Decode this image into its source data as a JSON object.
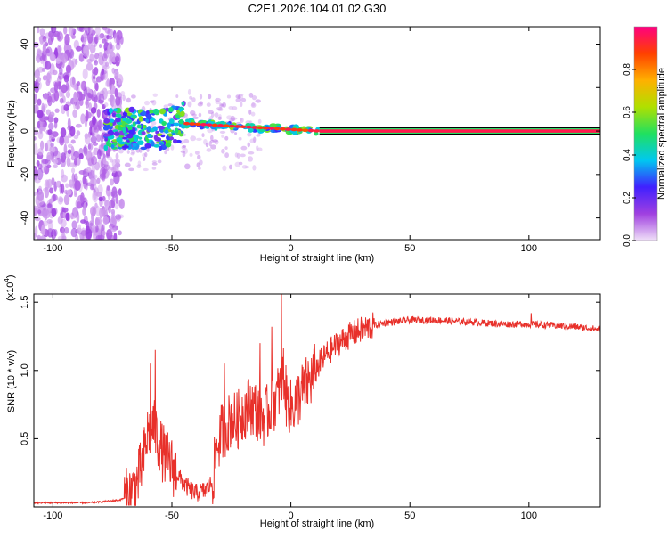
{
  "title": "C2E1.2026.104.01.02.G30",
  "chart_data": [
    {
      "type": "heatmap",
      "xlabel": "Height of straight line (km)",
      "ylabel": "Frequency (Hz)",
      "xlim": [
        -108,
        130
      ],
      "ylim": [
        -50,
        48
      ],
      "x_ticks": [
        -100,
        -50,
        0,
        50,
        100
      ],
      "y_ticks": [
        -40,
        -20,
        0,
        20,
        40
      ],
      "colorbar": {
        "label": "Normalized spectral amplitude",
        "range": [
          0,
          1
        ],
        "ticks": [
          0.0,
          0.2,
          0.4,
          0.6,
          0.8
        ],
        "tick_labels": [
          "0.0",
          "0.2",
          "0.4",
          "0.6",
          "0.8"
        ],
        "colors": [
          "#f0e0f8",
          "#a040e0",
          "#4020ff",
          "#00c8f0",
          "#20e060",
          "#b0e000",
          "#ffb000",
          "#ff4000",
          "#ff0080"
        ]
      },
      "zones": [
        {
          "x_range": [
            -108,
            -71
          ],
          "freq_range": [
            -50,
            48
          ],
          "amplitude": 0.15,
          "description_color": "purple-noise"
        },
        {
          "x_range": [
            -78,
            -45
          ],
          "freq_range": [
            -8,
            10
          ],
          "amplitude": 0.35
        },
        {
          "x_range": [
            -45,
            12
          ],
          "freq_range": [
            -3,
            4
          ],
          "amplitude": 0.8
        },
        {
          "x_range": [
            12,
            130
          ],
          "freq_range": [
            -1,
            1
          ],
          "amplitude": 0.95
        }
      ]
    },
    {
      "type": "line",
      "xlabel": "Height of straight line (km)",
      "ylabel": "SNR (10 * v/v)",
      "scale_label": "(x10",
      "scale_exp": "4",
      "xlim": [
        -108,
        130
      ],
      "ylim": [
        0,
        1.56
      ],
      "x_ticks": [
        -100,
        -50,
        0,
        50,
        100
      ],
      "y_ticks": [
        0.5,
        1.0,
        1.5
      ],
      "y_tick_labels": [
        "0.5",
        "1.0",
        "1.5"
      ],
      "series_color": "#e8302a",
      "series": [
        {
          "x": [
            -108,
            -95,
            -85,
            -78,
            -72,
            -68,
            -65,
            -62,
            -60,
            -58,
            -56,
            -54,
            -52,
            -50,
            -47,
            -44,
            -40,
            -36,
            -33,
            -31,
            -29,
            -27,
            -25,
            -23,
            -20,
            -17,
            -14,
            -11,
            -8,
            -6,
            -4,
            -3,
            -2,
            0,
            3,
            6,
            9,
            12,
            15,
            20,
            25,
            30,
            35,
            40,
            45,
            50,
            55,
            60,
            70,
            80,
            90,
            100,
            110,
            120,
            130
          ],
          "y": [
            0.03,
            0.03,
            0.03,
            0.04,
            0.05,
            0.08,
            0.15,
            0.35,
            0.55,
            0.6,
            0.5,
            0.4,
            0.35,
            0.3,
            0.22,
            0.15,
            0.1,
            0.12,
            0.18,
            0.45,
            0.55,
            0.6,
            0.65,
            0.62,
            0.7,
            0.75,
            0.7,
            0.65,
            0.75,
            0.8,
            0.9,
            1.0,
            0.8,
            0.72,
            0.8,
            0.88,
            0.95,
            1.05,
            1.12,
            1.2,
            1.26,
            1.3,
            1.33,
            1.35,
            1.36,
            1.37,
            1.37,
            1.37,
            1.36,
            1.35,
            1.34,
            1.34,
            1.33,
            1.32,
            1.3
          ]
        }
      ],
      "spikes": [
        {
          "x": -57,
          "y": 1.15
        },
        {
          "x": -59,
          "y": 1.05
        },
        {
          "x": -4,
          "y": 1.56
        },
        {
          "x": -8,
          "y": 1.32
        },
        {
          "x": -28,
          "y": 1.05
        },
        {
          "x": -13,
          "y": 1.2
        },
        {
          "x": 101,
          "y": 1.42
        }
      ]
    }
  ]
}
